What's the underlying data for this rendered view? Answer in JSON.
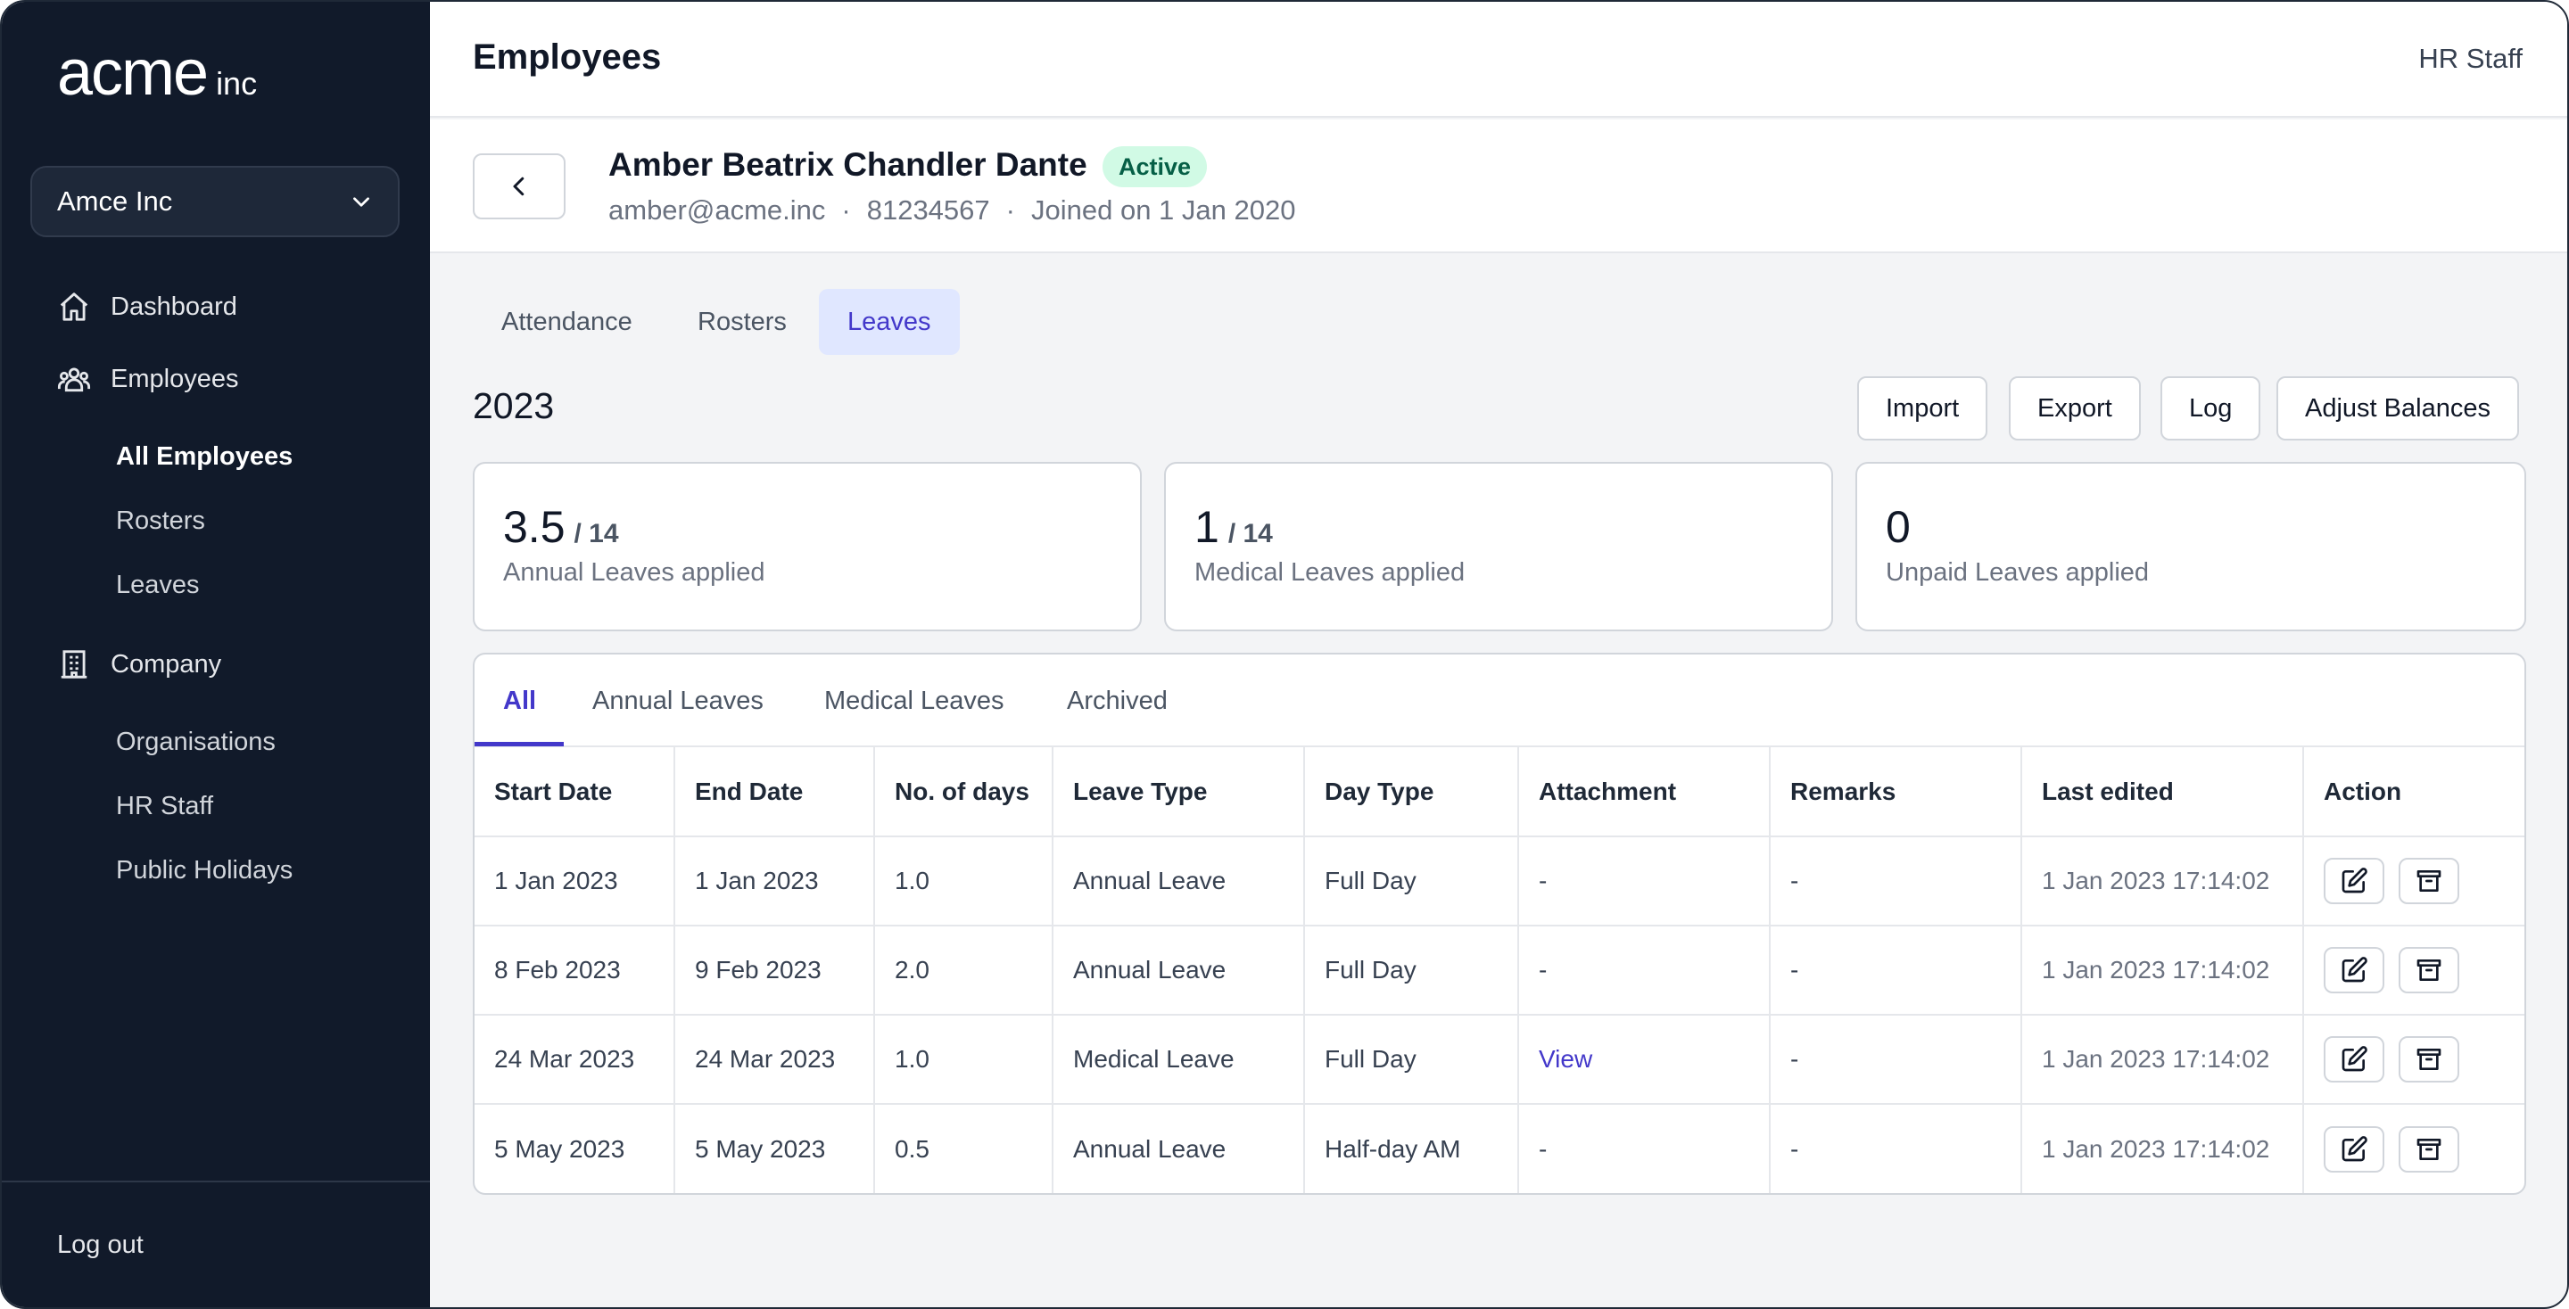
{
  "brand": {
    "name": "acme",
    "suffix": "inc"
  },
  "org_select": {
    "value": "Amce Inc"
  },
  "sidebar": {
    "dashboard": "Dashboard",
    "employees": "Employees",
    "employee_sub": [
      "All Employees",
      "Rosters",
      "Leaves"
    ],
    "company": "Company",
    "company_sub": [
      "Organisations",
      "HR Staff",
      "Public Holidays"
    ],
    "logout": "Log out"
  },
  "header": {
    "title": "Employees",
    "role": "HR Staff"
  },
  "employee": {
    "name": "Amber Beatrix Chandler Dante",
    "status": "Active",
    "email": "amber@acme.inc",
    "phone": "81234567",
    "joined": "Joined on 1 Jan 2020",
    "separator": "·"
  },
  "tabs": [
    "Attendance",
    "Rosters",
    "Leaves"
  ],
  "year": "2023",
  "actions": [
    "Import",
    "Export",
    "Log",
    "Adjust Balances"
  ],
  "stats": [
    {
      "value": "3.5",
      "total": "/ 14",
      "label": "Annual Leaves applied"
    },
    {
      "value": "1",
      "total": "/ 14",
      "label": "Medical Leaves applied"
    },
    {
      "value": "0",
      "total": "",
      "label": "Unpaid Leaves applied"
    }
  ],
  "subtabs": [
    "All",
    "Annual Leaves",
    "Medical Leaves",
    "Archived"
  ],
  "table": {
    "headers": [
      "Start Date",
      "End Date",
      "No. of days",
      "Leave Type",
      "Day Type",
      "Attachment",
      "Remarks",
      "Last edited",
      "Action"
    ],
    "rows": [
      [
        "1 Jan 2023",
        "1 Jan 2023",
        "1.0",
        "Annual Leave",
        "Full Day",
        "-",
        "-",
        "1 Jan 2023 17:14:02"
      ],
      [
        "8 Feb 2023",
        "9 Feb 2023",
        "2.0",
        "Annual Leave",
        "Full Day",
        "-",
        "-",
        "1 Jan 2023 17:14:02"
      ],
      [
        "24 Mar 2023",
        "24 Mar 2023",
        "1.0",
        "Medical Leave",
        "Full Day",
        "View",
        "-",
        "1 Jan 2023 17:14:02"
      ],
      [
        "5 May 2023",
        "5 May 2023",
        "0.5",
        "Annual Leave",
        "Half-day AM",
        "-",
        "-",
        "1 Jan 2023 17:14:02"
      ]
    ]
  },
  "colors": {
    "sidebar": "#111a2a",
    "accent": "#4338ca",
    "active_badge": "#d1fae5"
  }
}
